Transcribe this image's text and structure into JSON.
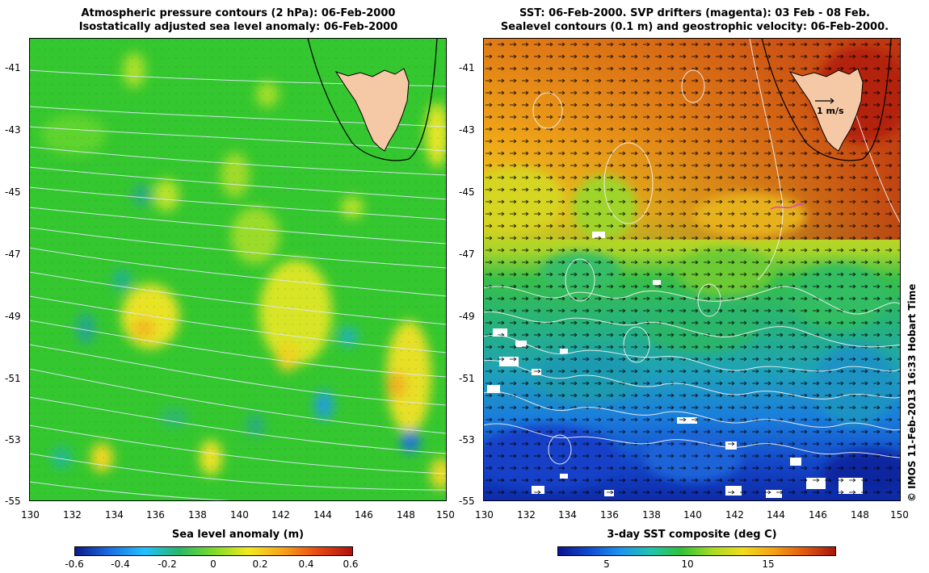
{
  "left_panel": {
    "title_line1": "Atmospheric pressure contours (2 hPa): 06-Feb-2000",
    "title_line2": "Isostatically adjusted sea level anomaly: 06-Feb-2000",
    "y_ticks": [
      "-41",
      "-43",
      "-45",
      "-47",
      "-49",
      "-51",
      "-53",
      "-55"
    ],
    "x_ticks": [
      "130",
      "132",
      "134",
      "136",
      "138",
      "140",
      "142",
      "144",
      "146",
      "148",
      "150"
    ],
    "colorbar": {
      "title": "Sea level anomaly (m)",
      "ticks": [
        "-0.6",
        "-0.4",
        "-0.2",
        "0",
        "0.2",
        "0.4",
        "0.6"
      ],
      "colors": [
        "#0b1a8a",
        "#1a6fe0",
        "#22c1ff",
        "#27b86a",
        "#7ddb2a",
        "#f3e91f",
        "#f7a21a",
        "#e64a12",
        "#b0120e"
      ]
    },
    "colors": {
      "sea": "#35c72f",
      "land": "#f5c9a6",
      "contour": "#dde8f6"
    }
  },
  "right_panel": {
    "title_line1": "SST: 06-Feb-2000. SVP drifters (magenta): 03 Feb - 08 Feb.",
    "title_line2": "Sealevel contours (0.1 m) and geostrophic velocity: 06-Feb-2000.",
    "y_ticks": [
      "-41",
      "-43",
      "-45",
      "-47",
      "-49",
      "-51",
      "-53",
      "-55"
    ],
    "x_ticks": [
      "130",
      "132",
      "134",
      "136",
      "138",
      "140",
      "142",
      "144",
      "146",
      "148",
      "150"
    ],
    "scale_label": "1 m/s",
    "colorbar": {
      "title": "3-day SST composite (deg C)",
      "ticks": [
        "5",
        "10",
        "15"
      ],
      "colors": [
        "#0a1490",
        "#0f4cd0",
        "#1b93ef",
        "#20c4b0",
        "#2fc23a",
        "#a8dc23",
        "#f1dc1b",
        "#f4a116",
        "#e1580f",
        "#a8160d"
      ]
    },
    "colors": {
      "drifter": "#e040c0",
      "contour": "#f2f2f2",
      "arrow": "#000000"
    }
  },
  "credit": "© IMOS 11-Feb-2013 16:33 Hobart Time"
}
